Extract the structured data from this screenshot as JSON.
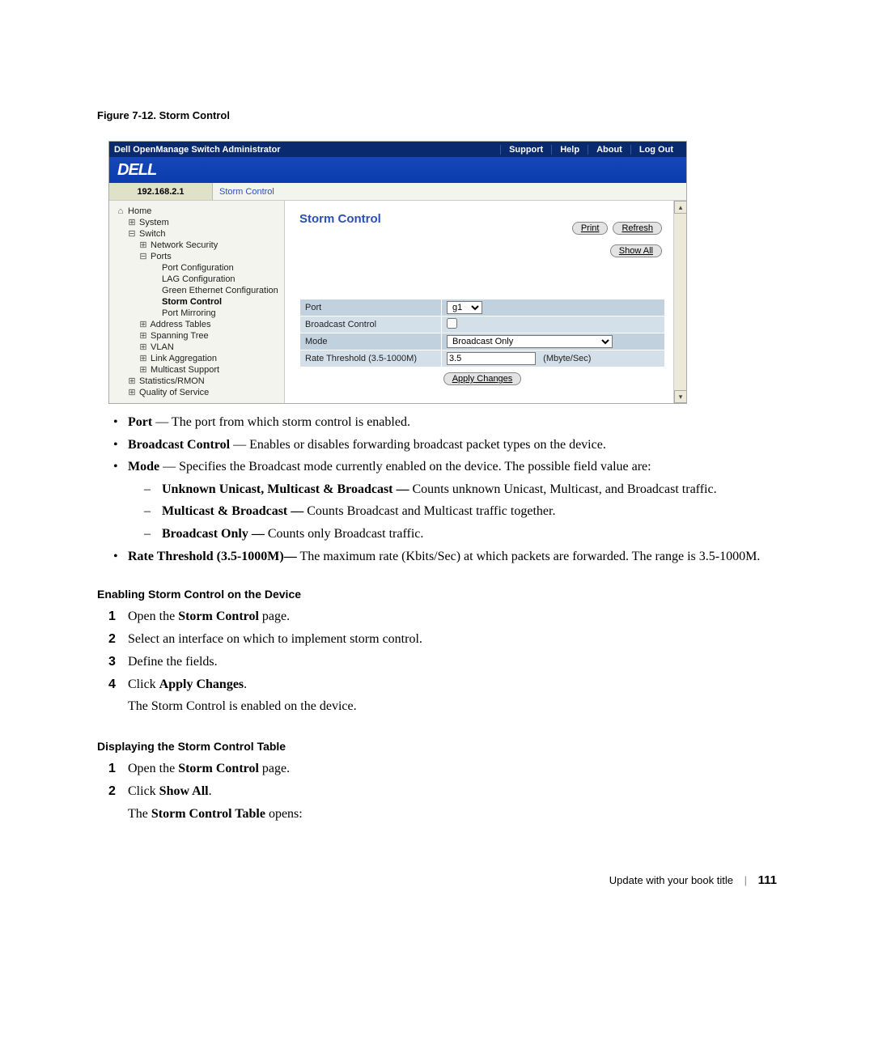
{
  "figure": {
    "caption": "Figure 7-12.    Storm Control"
  },
  "app": {
    "title": "Dell OpenManage Switch Administrator",
    "nav": [
      "Support",
      "Help",
      "About",
      "Log Out"
    ],
    "logo_text": "DELL",
    "ip": "192.168.2.1",
    "breadcrumb": "Storm Control",
    "colors": {
      "topbar": "#0a2a6f",
      "logobar": "#0b3cad",
      "header_text": "#2d4fb5",
      "row_a": "#c1d2de",
      "row_b": "#d4e0e9",
      "ipcell": "#dfe1c8",
      "page_bg": "#f3f4ee"
    },
    "tree": [
      {
        "l": 0,
        "ic": "⌂",
        "t": "Home"
      },
      {
        "l": 1,
        "ic": "⊞",
        "t": "System"
      },
      {
        "l": 1,
        "ic": "⊟",
        "t": "Switch"
      },
      {
        "l": 2,
        "ic": "⊞",
        "t": "Network Security"
      },
      {
        "l": 2,
        "ic": "⊟",
        "t": "Ports"
      },
      {
        "l": 3,
        "ic": "",
        "t": "Port Configuration"
      },
      {
        "l": 3,
        "ic": "",
        "t": "LAG Configuration"
      },
      {
        "l": 3,
        "ic": "",
        "t": "Green Ethernet Configuration"
      },
      {
        "l": 3,
        "ic": "",
        "t": "Storm Control",
        "active": true
      },
      {
        "l": 3,
        "ic": "",
        "t": "Port Mirroring"
      },
      {
        "l": 2,
        "ic": "⊞",
        "t": "Address Tables"
      },
      {
        "l": 2,
        "ic": "⊞",
        "t": "Spanning Tree"
      },
      {
        "l": 2,
        "ic": "⊞",
        "t": "VLAN"
      },
      {
        "l": 2,
        "ic": "⊞",
        "t": "Link Aggregation"
      },
      {
        "l": 2,
        "ic": "⊞",
        "t": "Multicast Support"
      },
      {
        "l": 1,
        "ic": "⊞",
        "t": "Statistics/RMON"
      },
      {
        "l": 1,
        "ic": "⊞",
        "t": "Quality of Service"
      }
    ],
    "content": {
      "heading": "Storm Control",
      "buttons": {
        "print": "Print",
        "refresh": "Refresh",
        "show_all": "Show All",
        "apply": "Apply Changes"
      },
      "fields": {
        "port_label": "Port",
        "port_value": "g1",
        "bc_label": "Broadcast Control",
        "mode_label": "Mode",
        "mode_value": "Broadcast Only",
        "rate_label": "Rate Threshold (3.5-1000M)",
        "rate_value": "3.5",
        "rate_unit": "(Mbyte/Sec)"
      }
    }
  },
  "body": {
    "bullets": {
      "port_term": "Port",
      "port_text": " — The port from which storm control is enabled.",
      "bc_term": "Broadcast Control",
      "bc_text": " — Enables or disables forwarding broadcast packet types on the device.",
      "mode_term": "Mode",
      "mode_text": " — Specifies the Broadcast mode currently enabled on the device. The possible field value are:",
      "mode_sub1_term": "Unknown Unicast, Multicast & Broadcast —",
      "mode_sub1_text": " Counts unknown Unicast, Multicast, and Broadcast traffic.",
      "mode_sub2_term": "Multicast & Broadcast —",
      "mode_sub2_text": " Counts Broadcast and Multicast traffic together.",
      "mode_sub3_term": "Broadcast Only —",
      "mode_sub3_text": " Counts only Broadcast traffic.",
      "rate_term": "Rate Threshold (3.5-1000M)—",
      "rate_text": " The maximum rate (Kbits/Sec) at which packets are forwarded. The range is 3.5-1000M."
    },
    "sec1": {
      "heading": "Enabling Storm Control on the Device",
      "s1a": "Open the ",
      "s1b": "Storm Control",
      "s1c": " page.",
      "s2": "Select an interface on which to implement storm control.",
      "s3": "Define the fields.",
      "s4a": "Click ",
      "s4b": "Apply Changes",
      "s4c": ".",
      "s5": "The Storm Control is enabled on the device."
    },
    "sec2": {
      "heading": "Displaying the Storm Control Table",
      "s1a": "Open the ",
      "s1b": "Storm Control",
      "s1c": " page.",
      "s2a": "Click ",
      "s2b": "Show All",
      "s2c": ".",
      "s3a": "The ",
      "s3b": "Storm Control Table",
      "s3c": " opens:"
    }
  },
  "footer": {
    "book": "Update with your book title",
    "page": "111"
  }
}
